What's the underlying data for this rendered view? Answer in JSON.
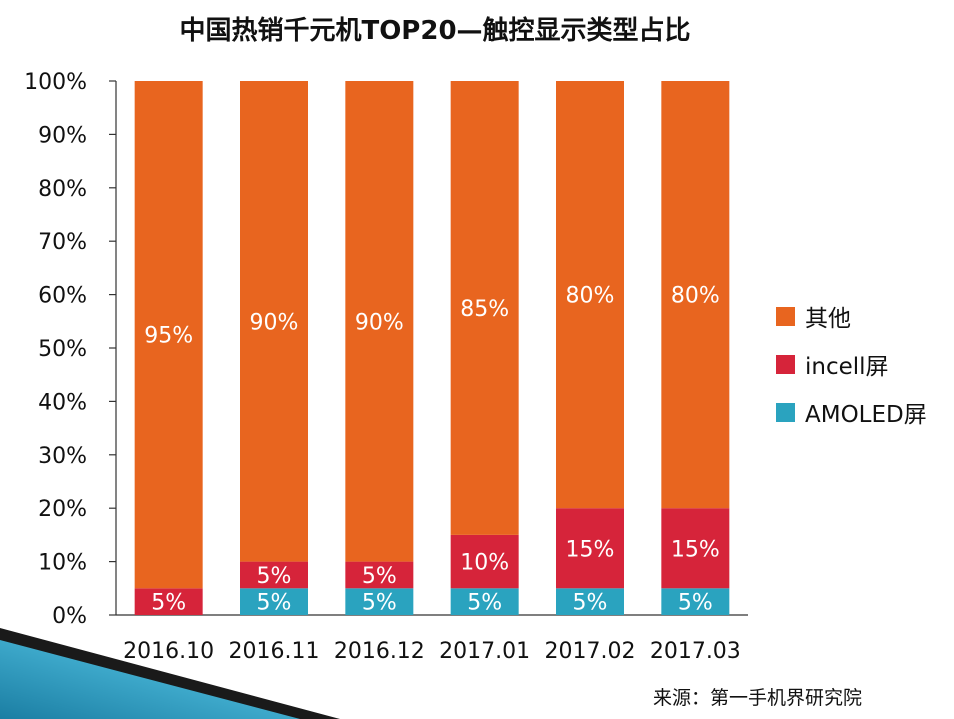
{
  "title": "中国热销千元机TOP20—触控显示类型占比",
  "source": "来源：第一手机界研究院",
  "colors": {
    "orange": "#e8651f",
    "red": "#d6243a",
    "teal": "#2aa3bf",
    "axis": "#333333",
    "text": "#111111"
  },
  "chart_data": {
    "type": "bar",
    "stacked": true,
    "categories": [
      "2016.10",
      "2016.11",
      "2016.12",
      "2017.01",
      "2017.02",
      "2017.03"
    ],
    "series": [
      {
        "name": "AMOLED屏",
        "color": "#2aa3bf",
        "values": [
          0,
          5,
          5,
          5,
          5,
          5
        ],
        "labels": [
          "",
          "5%",
          "5%",
          "5%",
          "5%",
          "5%"
        ]
      },
      {
        "name": "incell屏",
        "color": "#d6243a",
        "values": [
          5,
          5,
          5,
          10,
          15,
          15
        ],
        "labels": [
          "5%",
          "5%",
          "5%",
          "10%",
          "15%",
          "15%"
        ]
      },
      {
        "name": "其他",
        "color": "#e8651f",
        "values": [
          95,
          90,
          90,
          85,
          80,
          80
        ],
        "labels": [
          "95%",
          "90%",
          "90%",
          "85%",
          "80%",
          "80%"
        ]
      }
    ],
    "yticks": [
      "0%",
      "10%",
      "20%",
      "30%",
      "40%",
      "50%",
      "60%",
      "70%",
      "80%",
      "90%",
      "100%"
    ],
    "ylim": [
      0,
      100
    ],
    "legend": [
      "其他",
      "incell屏",
      "AMOLED屏"
    ],
    "legend_position": "right"
  }
}
